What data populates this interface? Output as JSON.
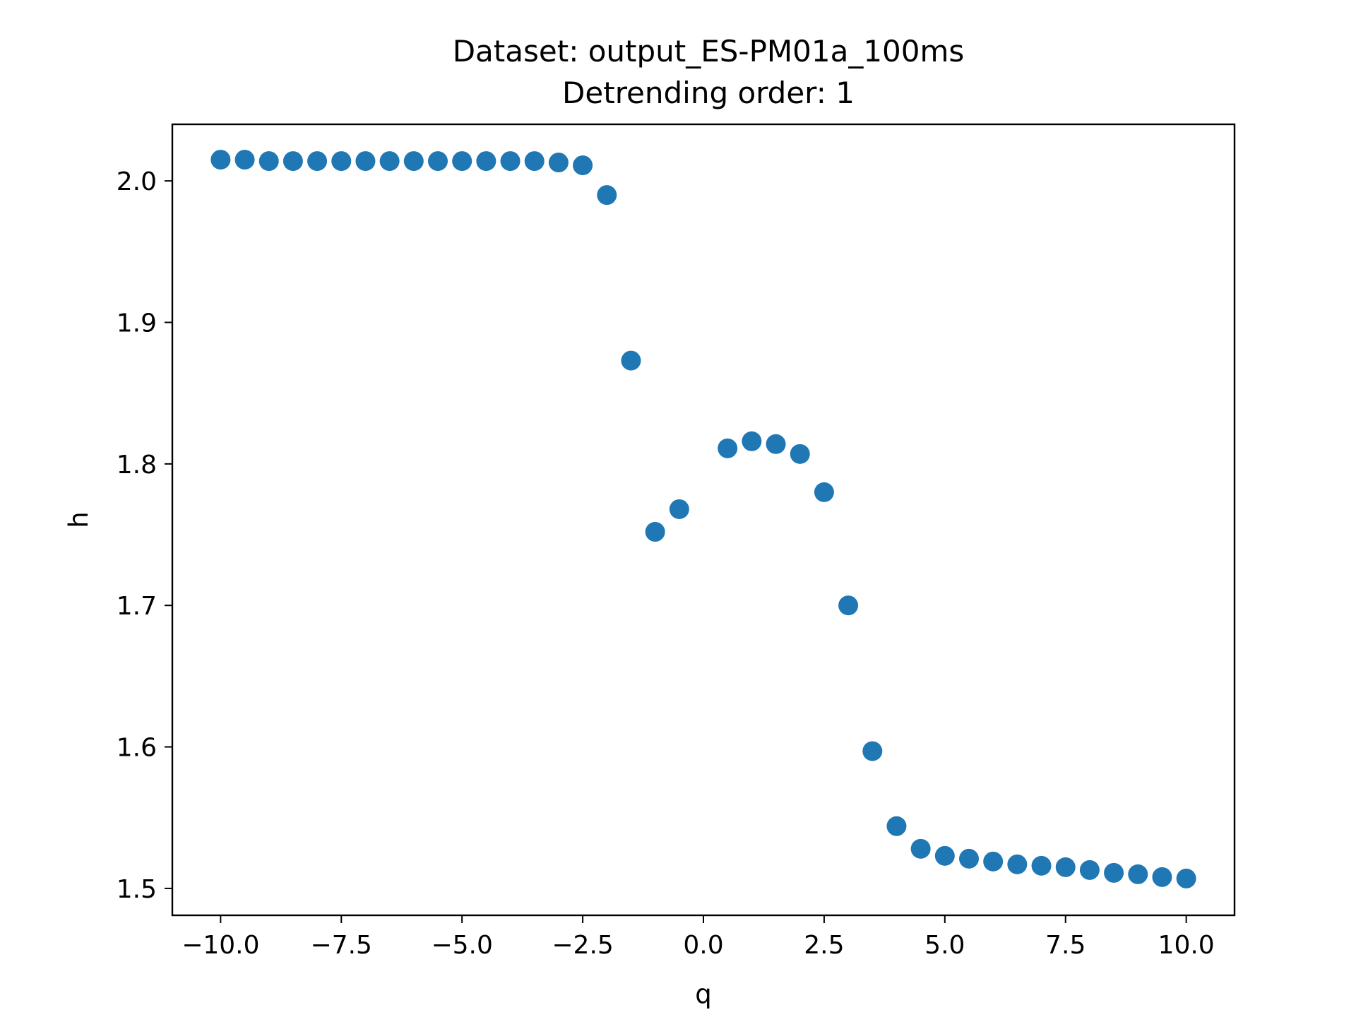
{
  "chart_data": {
    "type": "scatter",
    "title": [
      "Dataset: output_ES-PM01a_100ms",
      "Detrending order: 1"
    ],
    "xlabel": "q",
    "ylabel": "h",
    "xlim": [
      -11.0,
      11.0
    ],
    "ylim": [
      1.481,
      2.04
    ],
    "xticks": [
      -10.0,
      -7.5,
      -5.0,
      -2.5,
      0.0,
      2.5,
      5.0,
      7.5,
      10.0
    ],
    "xtick_labels": [
      "−10.0",
      "−7.5",
      "−5.0",
      "−2.5",
      "0.0",
      "2.5",
      "5.0",
      "7.5",
      "10.0"
    ],
    "yticks": [
      1.5,
      1.6,
      1.7,
      1.8,
      1.9,
      2.0
    ],
    "ytick_labels": [
      "1.5",
      "1.6",
      "1.7",
      "1.8",
      "1.9",
      "2.0"
    ],
    "grid": false,
    "legend": "none",
    "marker_color": "#1f77b4",
    "series": [
      {
        "x": [
          -10.0,
          -9.5,
          -9.0,
          -8.5,
          -8.0,
          -7.5,
          -7.0,
          -6.5,
          -6.0,
          -5.5,
          -5.0,
          -4.5,
          -4.0,
          -3.5,
          -3.0,
          -2.5,
          -2.0,
          -1.5,
          -1.0,
          -0.5,
          0.5,
          1.0,
          1.5,
          2.0,
          2.5,
          3.0,
          3.5,
          4.0,
          4.5,
          5.0,
          5.5,
          6.0,
          6.5,
          7.0,
          7.5,
          8.0,
          8.5,
          9.0,
          9.5,
          10.0
        ],
        "y": [
          2.015,
          2.015,
          2.014,
          2.014,
          2.014,
          2.014,
          2.014,
          2.014,
          2.014,
          2.014,
          2.014,
          2.014,
          2.014,
          2.014,
          2.013,
          2.011,
          1.99,
          1.873,
          1.752,
          1.768,
          1.811,
          1.816,
          1.814,
          1.807,
          1.78,
          1.7,
          1.597,
          1.544,
          1.528,
          1.523,
          1.521,
          1.519,
          1.517,
          1.516,
          1.515,
          1.513,
          1.511,
          1.51,
          1.508,
          1.507
        ]
      }
    ]
  }
}
